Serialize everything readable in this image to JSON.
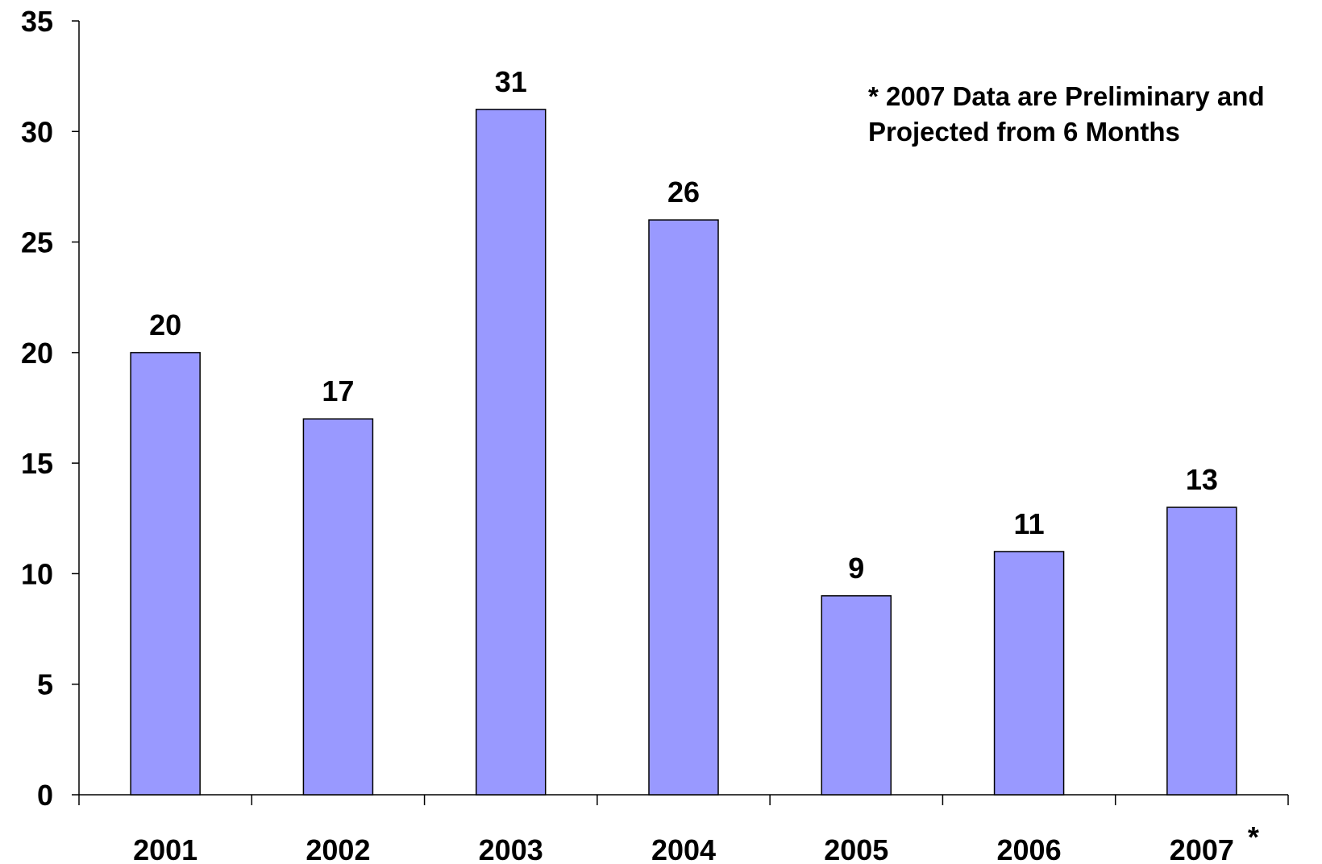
{
  "chart_data": {
    "type": "bar",
    "categories": [
      "2001",
      "2002",
      "2003",
      "2004",
      "2005",
      "2006",
      "2007"
    ],
    "values": [
      20,
      17,
      31,
      26,
      9,
      11,
      13
    ],
    "data_labels": [
      "20",
      "17",
      "31",
      "26",
      "9",
      "11",
      "13"
    ],
    "category_markers": [
      "",
      "",
      "",
      "",
      "",
      "",
      "*"
    ],
    "ylim": [
      0,
      35
    ],
    "yticks": [
      "0",
      "5",
      "10",
      "15",
      "20",
      "25",
      "30",
      "35"
    ],
    "ytick_values": [
      0,
      5,
      10,
      15,
      20,
      25,
      30,
      35
    ],
    "bar_color": "#9999ff",
    "grid": false,
    "annotation": {
      "line1": "* 2007 Data are Preliminary and",
      "line2": "Projected from 6 Months"
    }
  }
}
